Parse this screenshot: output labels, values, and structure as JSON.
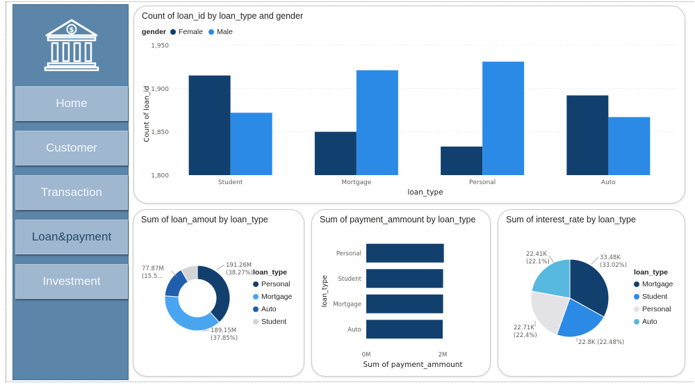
{
  "sidebar": {
    "logo_icon": "bank-icon",
    "items": [
      {
        "label": "Home"
      },
      {
        "label": "Customer"
      },
      {
        "label": "Transaction"
      },
      {
        "label": "Loan&payment"
      },
      {
        "label": "Investment"
      }
    ]
  },
  "colors": {
    "dark_blue": "#12406e",
    "bright_blue": "#2b8ae6",
    "mid_blue": "#1f5fae",
    "light_blue": "#4aa5f0",
    "sky_blue": "#57b8e0",
    "light_gray": "#d4d4d6"
  },
  "chart_data": [
    {
      "type": "bar",
      "title": "Count of loan_id by loan_type and gender",
      "legend_title": "gender",
      "legend_position": "top-left",
      "categories": [
        "Student",
        "Mortgage",
        "Personal",
        "Auto"
      ],
      "series": [
        {
          "name": "Female",
          "values": [
            1915,
            1850,
            1833,
            1892
          ]
        },
        {
          "name": "Male",
          "values": [
            1872,
            1921,
            1931,
            1867
          ]
        }
      ],
      "xlabel": "loan_type",
      "ylabel": "Count of loan_id",
      "ylim": [
        1800,
        1950
      ],
      "yticks": [
        "1,800",
        "1,850",
        "1,900",
        "1,950"
      ],
      "yticks_values": [
        1800,
        1850,
        1900,
        1950
      ],
      "grid": true
    },
    {
      "type": "pie",
      "variant": "donut",
      "title": "Sum of loan_amout by loan_type",
      "legend_title": "loan_type",
      "legend_position": "right",
      "slices": [
        {
          "label": "Personal",
          "value": 191.26,
          "display": "191.26M",
          "pct": "(38.27%)"
        },
        {
          "label": "Mortgage",
          "value": 189.15,
          "display": "189.15M",
          "pct": "(37.85%)"
        },
        {
          "label": "Auto",
          "value": 77.87,
          "display": "77.87M",
          "pct": "(15.5..."
        },
        {
          "label": "Student",
          "value": 41.5,
          "display": "",
          "pct": ""
        }
      ]
    },
    {
      "type": "bar",
      "orientation": "horizontal",
      "title": "Sum of payment_ammount by loan_type",
      "categories": [
        "Personal",
        "Student",
        "Mortgage",
        "Auto"
      ],
      "values": [
        2.03,
        2.01,
        2.01,
        2.0
      ],
      "xlabel": "Sum of payment_ammount",
      "ylabel": "loan_type",
      "xlim": [
        0,
        2
      ],
      "xticks": [
        "0M",
        "2M"
      ],
      "xticks_values": [
        0,
        2
      ]
    },
    {
      "type": "pie",
      "title": "Sum of interest_rate by loan_type",
      "legend_title": "loan_type",
      "legend_position": "right",
      "slices": [
        {
          "label": "Mortgage",
          "value": 33.48,
          "display": "33.48K",
          "pct": "(33.02%)"
        },
        {
          "label": "Student",
          "value": 22.8,
          "display": "22.8K",
          "pct": "(22.48%)"
        },
        {
          "label": "Personal",
          "value": 22.71,
          "display": "22.71K",
          "pct": "(22.4%)"
        },
        {
          "label": "Auto",
          "value": 22.41,
          "display": "22.41K",
          "pct": "(22.1%)"
        }
      ]
    }
  ]
}
